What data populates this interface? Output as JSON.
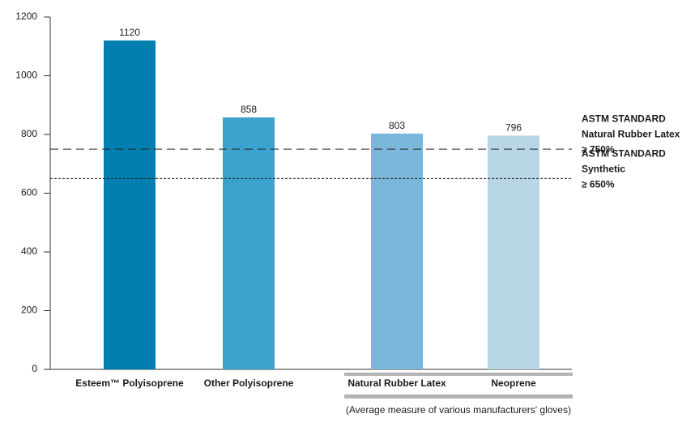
{
  "chart_data": {
    "type": "bar",
    "categories": [
      "Esteem™ Polyisoprene",
      "Other Polyisoprene",
      "Natural Rubber Latex",
      "Neoprene"
    ],
    "values": [
      1120,
      858,
      803,
      796
    ],
    "colors": [
      "#007fb0",
      "#3aa2cc",
      "#7ab8db",
      "#b9d6e6"
    ],
    "ylim": [
      0,
      1200
    ],
    "yticks": [
      0,
      200,
      400,
      600,
      800,
      1000,
      1200
    ],
    "reference_lines": [
      {
        "value": 750,
        "style": "dashed",
        "label_lines": [
          "ASTM STANDARD",
          "Natural Rubber Latex",
          "≥ 750%"
        ]
      },
      {
        "value": 650,
        "style": "dotted",
        "label_lines": [
          "ASTM STANDARD",
          "Synthetic",
          "≥ 650%"
        ]
      }
    ],
    "note": "(Average measure of various manufacturers' gloves)"
  }
}
